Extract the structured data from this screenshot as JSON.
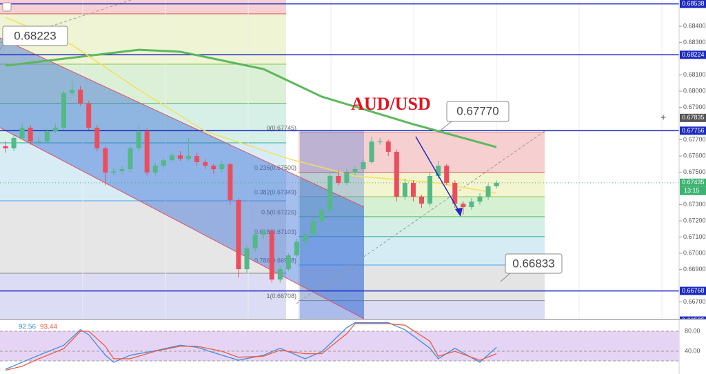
{
  "chart_data": {
    "type": "candlestick",
    "title": "AUD/USD",
    "ylim": [
      0.66596,
      0.68562
    ],
    "yticks": [
      {
        "value": 0.684,
        "label": "0.68400"
      },
      {
        "value": 0.683,
        "label": "0.68300"
      },
      {
        "value": 0.681,
        "label": "0.68100"
      },
      {
        "value": 0.68,
        "label": "0.68000"
      },
      {
        "value": 0.679,
        "label": "0.67900"
      },
      {
        "value": 0.677,
        "label": "0.67700"
      },
      {
        "value": 0.676,
        "label": "0.67600"
      },
      {
        "value": 0.675,
        "label": "0.67500"
      },
      {
        "value": 0.673,
        "label": "0.67300"
      },
      {
        "value": 0.672,
        "label": "0.67200"
      },
      {
        "value": 0.671,
        "label": "0.67100"
      },
      {
        "value": 0.67,
        "label": "0.67000"
      },
      {
        "value": 0.669,
        "label": "0.66900"
      },
      {
        "value": 0.667,
        "label": "0.66700"
      }
    ],
    "up_color": "#53b987",
    "down_color": "#eb4d5c",
    "candles": [
      [
        0.6766,
        0.6769,
        0.6762,
        0.67647
      ],
      [
        0.67647,
        0.6773,
        0.6763,
        0.67711
      ],
      [
        0.67711,
        0.678,
        0.677,
        0.67774
      ],
      [
        0.67774,
        0.6779,
        0.6767,
        0.67689
      ],
      [
        0.67689,
        0.6772,
        0.6767,
        0.67689
      ],
      [
        0.67689,
        0.6777,
        0.6768,
        0.67753
      ],
      [
        0.67753,
        0.678,
        0.6774,
        0.67774
      ],
      [
        0.67774,
        0.68,
        0.6776,
        0.67987
      ],
      [
        0.67987,
        0.6806,
        0.6797,
        0.68009
      ],
      [
        0.68009,
        0.6803,
        0.6791,
        0.67923
      ],
      [
        0.67923,
        0.6794,
        0.6776,
        0.67774
      ],
      [
        0.67774,
        0.6779,
        0.6763,
        0.67647
      ],
      [
        0.67647,
        0.6766,
        0.6742,
        0.67498
      ],
      [
        0.67498,
        0.6753,
        0.6748,
        0.67506
      ],
      [
        0.67506,
        0.6754,
        0.6749,
        0.67519
      ],
      [
        0.67519,
        0.6766,
        0.675,
        0.67647
      ],
      [
        0.67647,
        0.6779,
        0.6763,
        0.67753
      ],
      [
        0.67753,
        0.6777,
        0.6748,
        0.67498
      ],
      [
        0.67498,
        0.6756,
        0.6748,
        0.6754
      ],
      [
        0.6754,
        0.6759,
        0.6752,
        0.67574
      ],
      [
        0.67574,
        0.6762,
        0.6756,
        0.67604
      ],
      [
        0.67604,
        0.6763,
        0.6757,
        0.67583
      ],
      [
        0.67583,
        0.6771,
        0.6757,
        0.676
      ],
      [
        0.676,
        0.6762,
        0.6754,
        0.67562
      ],
      [
        0.67562,
        0.6758,
        0.6752,
        0.6754
      ],
      [
        0.6754,
        0.6755,
        0.6749,
        0.67519
      ],
      [
        0.67519,
        0.6757,
        0.675,
        0.67549
      ],
      [
        0.67549,
        0.6756,
        0.673,
        0.67328
      ],
      [
        0.67328,
        0.6734,
        0.6685,
        0.66902
      ],
      [
        0.66902,
        0.6705,
        0.6688,
        0.6703
      ],
      [
        0.6703,
        0.6713,
        0.6701,
        0.67115
      ],
      [
        0.67115,
        0.6715,
        0.6709,
        0.67136
      ],
      [
        0.67136,
        0.6715,
        0.6682,
        0.66838
      ],
      [
        0.66838,
        0.6692,
        0.6682,
        0.66902
      ],
      [
        0.66902,
        0.67,
        0.6689,
        0.66987
      ],
      [
        0.66987,
        0.6709,
        0.6697,
        0.67072
      ],
      [
        0.67072,
        0.6713,
        0.6705,
        0.67115
      ],
      [
        0.67115,
        0.6722,
        0.671,
        0.672
      ],
      [
        0.672,
        0.6728,
        0.6718,
        0.67264
      ],
      [
        0.67264,
        0.675,
        0.6725,
        0.67477
      ],
      [
        0.67477,
        0.6751,
        0.6742,
        0.67434
      ],
      [
        0.67434,
        0.6752,
        0.6742,
        0.67498
      ],
      [
        0.67498,
        0.6754,
        0.6748,
        0.67519
      ],
      [
        0.67519,
        0.6758,
        0.675,
        0.67562
      ],
      [
        0.67562,
        0.6772,
        0.6755,
        0.67689
      ],
      [
        0.67689,
        0.6771,
        0.6767,
        0.67689
      ],
      [
        0.67689,
        0.677,
        0.676,
        0.67626
      ],
      [
        0.67626,
        0.6764,
        0.6732,
        0.67349
      ],
      [
        0.67349,
        0.6746,
        0.6733,
        0.67434
      ],
      [
        0.67434,
        0.6745,
        0.6732,
        0.67349
      ],
      [
        0.67349,
        0.6736,
        0.6728,
        0.67306
      ],
      [
        0.67306,
        0.675,
        0.6729,
        0.67477
      ],
      [
        0.67477,
        0.6757,
        0.6746,
        0.6754
      ],
      [
        0.6754,
        0.6755,
        0.6742,
        0.67434
      ],
      [
        0.67434,
        0.6745,
        0.6728,
        0.67306
      ],
      [
        0.67306,
        0.6732,
        0.6724,
        0.67285
      ],
      [
        0.67285,
        0.6734,
        0.6727,
        0.67319
      ],
      [
        0.67319,
        0.6737,
        0.673,
        0.67349
      ],
      [
        0.67349,
        0.6743,
        0.6733,
        0.67413
      ],
      [
        0.67413,
        0.6745,
        0.674,
        0.67435
      ]
    ],
    "lines": [
      {
        "color": "#5cb85c",
        "x": [
          0,
          16,
          21,
          31,
          38,
          49,
          59
        ],
        "values": [
          0.68157,
          0.68255,
          0.68243,
          0.68136,
          0.67966,
          0.67796,
          0.67655
        ]
      },
      {
        "color": "#f1e05a",
        "x": [
          0,
          8,
          16,
          24,
          34,
          42,
          52,
          59
        ],
        "values": [
          0.68455,
          0.68285,
          0.68009,
          0.67753,
          0.67583,
          0.67477,
          0.67434,
          0.6737
        ]
      }
    ],
    "fib_levels": [
      {
        "value": 0.67745,
        "label": "0(0.67745)",
        "color": "#e08080"
      },
      {
        "value": 0.675,
        "label": "0.236(0.67500)",
        "color": "#d95050"
      },
      {
        "value": 0.67349,
        "label": "0.382(0.67349)",
        "color": "#8bc34a"
      },
      {
        "value": 0.67226,
        "label": "0.5(0.67226)",
        "color": "#4caf50"
      },
      {
        "value": 0.67103,
        "label": "0.618(0.67103)",
        "color": "#26a69a"
      },
      {
        "value": 0.66928,
        "label": "0.786(0.66928)",
        "color": "#42a5f5"
      },
      {
        "value": 0.66708,
        "label": "1(0.66708)",
        "color": "#888888"
      }
    ],
    "price_tags": [
      {
        "value": 0.68538,
        "label": "0.68538",
        "color": "#1e2bc0"
      },
      {
        "value": 0.68224,
        "label": "0.68224",
        "color": "#1e2bc0"
      },
      {
        "value": 0.67835,
        "label": "0.67835",
        "color": "#555555"
      },
      {
        "value": 0.67756,
        "label": "0.67756",
        "color": "#1e2bc0"
      },
      {
        "value": 0.67435,
        "label": "0.67435",
        "color": "#3cb371"
      },
      {
        "value": 0.66768,
        "label": "0.66768",
        "color": "#1e2bc0"
      },
      {
        "value": 0.66585,
        "label": "0.66585",
        "color": "#1e2bc0"
      }
    ],
    "countdown": "13:15",
    "callouts": [
      "0.68223",
      "0.67770",
      "0.66833"
    ],
    "oscillator": {
      "ylim": [
        0,
        100
      ],
      "yticks": [
        {
          "value": 80,
          "label": "80.00"
        },
        {
          "value": 40,
          "label": "40.00"
        }
      ],
      "readings": [
        "92.56",
        "93.44"
      ],
      "series": [
        {
          "color": "#3d8fe0",
          "x": [
            0,
            2,
            4,
            7,
            9,
            10,
            12,
            13,
            15,
            18,
            21,
            23,
            26,
            28,
            31,
            33,
            36,
            38,
            41,
            42,
            46,
            48,
            51,
            52,
            54,
            57,
            59
          ],
          "values": [
            4,
            18,
            32,
            52,
            83,
            73,
            32,
            18,
            32,
            41,
            52,
            48,
            32,
            22,
            32,
            46,
            25,
            39,
            87,
            97,
            97,
            83,
            46,
            25,
            46,
            18,
            48
          ]
        },
        {
          "color": "#ef5a3c",
          "x": [
            0,
            2,
            4,
            7,
            9,
            10,
            12,
            13,
            15,
            18,
            21,
            23,
            26,
            28,
            31,
            33,
            36,
            38,
            41,
            42,
            46,
            48,
            51,
            52,
            54,
            57,
            59
          ],
          "values": [
            2,
            10,
            25,
            45,
            80,
            80,
            50,
            25,
            25,
            40,
            50,
            50,
            40,
            28,
            30,
            42,
            35,
            35,
            75,
            95,
            95,
            92,
            60,
            30,
            40,
            22,
            35
          ]
        }
      ]
    }
  }
}
